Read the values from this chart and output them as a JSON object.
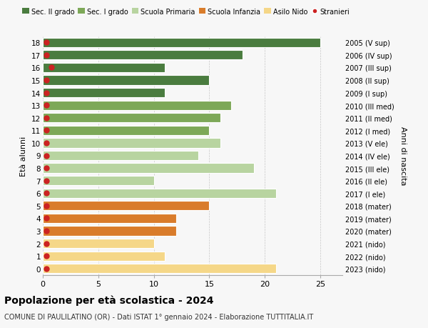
{
  "ages": [
    18,
    17,
    16,
    15,
    14,
    13,
    12,
    11,
    10,
    9,
    8,
    7,
    6,
    5,
    4,
    3,
    2,
    1,
    0
  ],
  "right_labels": [
    "2005 (V sup)",
    "2006 (IV sup)",
    "2007 (III sup)",
    "2008 (II sup)",
    "2009 (I sup)",
    "2010 (III med)",
    "2011 (II med)",
    "2012 (I med)",
    "2013 (V ele)",
    "2014 (IV ele)",
    "2015 (III ele)",
    "2016 (II ele)",
    "2017 (I ele)",
    "2018 (mater)",
    "2019 (mater)",
    "2020 (mater)",
    "2021 (nido)",
    "2022 (nido)",
    "2023 (nido)"
  ],
  "bar_values": [
    25,
    18,
    11,
    15,
    11,
    17,
    16,
    15,
    16,
    14,
    19,
    10,
    21,
    15,
    12,
    12,
    10,
    11,
    21
  ],
  "bar_colors": [
    "#4a7c3f",
    "#4a7c3f",
    "#4a7c3f",
    "#4a7c3f",
    "#4a7c3f",
    "#7da858",
    "#7da858",
    "#7da858",
    "#b8d4a0",
    "#b8d4a0",
    "#b8d4a0",
    "#b8d4a0",
    "#b8d4a0",
    "#d97c2b",
    "#d97c2b",
    "#d97c2b",
    "#f5d788",
    "#f5d788",
    "#f5d788"
  ],
  "stranieri_x": [
    0.3,
    0.3,
    0.8,
    0.3,
    0.3,
    0.3,
    0.3,
    0.3,
    0.3,
    0.3,
    0.3,
    0.3,
    0.3,
    0.3,
    0.3,
    0.3,
    0.3,
    0.3,
    0.3
  ],
  "legend_labels": [
    "Sec. II grado",
    "Sec. I grado",
    "Scuola Primaria",
    "Scuola Infanzia",
    "Asilo Nido",
    "Stranieri"
  ],
  "legend_colors": [
    "#4a7c3f",
    "#7da858",
    "#b8d4a0",
    "#d97c2b",
    "#f5d788",
    "#cc2222"
  ],
  "ylabel_left": "Età alunni",
  "ylabel_right": "Anni di nascita",
  "title": "Popolazione per età scolastica - 2024",
  "subtitle": "COMUNE DI PAULILATINO (OR) - Dati ISTAT 1° gennaio 2024 - Elaborazione TUTTITALIA.IT",
  "xlim": [
    0,
    27
  ],
  "background_color": "#f7f7f7",
  "bar_edge_color": "white",
  "stranieri_color": "#cc2222",
  "stranieri_size": 5
}
